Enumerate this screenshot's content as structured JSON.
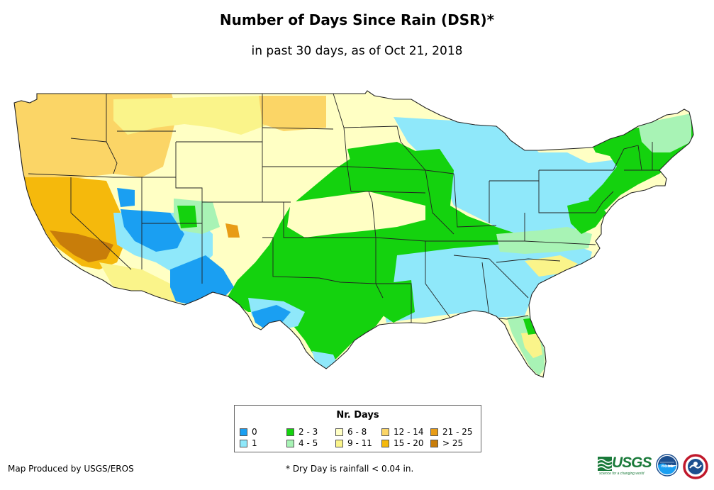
{
  "title": "Number of Days Since Rain (DSR)*",
  "subtitle": "in past 30 days, as of Oct 21, 2018",
  "legend": {
    "title": "Nr. Days",
    "items": [
      {
        "label": "0",
        "color": "#1a9ff2"
      },
      {
        "label": "1",
        "color": "#8fe8fa"
      },
      {
        "label": "2 - 3",
        "color": "#14d20e"
      },
      {
        "label": "4 - 5",
        "color": "#a8f3b5"
      },
      {
        "label": "6 - 8",
        "color": "#ffffc4"
      },
      {
        "label": "9 - 11",
        "color": "#faf48a"
      },
      {
        "label": "12 - 14",
        "color": "#fbd566"
      },
      {
        "label": "15 - 20",
        "color": "#f5b90c"
      },
      {
        "label": "21 - 25",
        "color": "#e89c16"
      },
      {
        "label": "> 25",
        "color": "#c87d0a"
      }
    ]
  },
  "footer": {
    "producer": "Map Produced by USGS/EROS",
    "note": "* Dry Day is rainfall < 0.04 in."
  },
  "logos": {
    "usgs_text": "USGS",
    "usgs_tagline": "science for a changing world",
    "noaa_text": "noaa"
  }
}
